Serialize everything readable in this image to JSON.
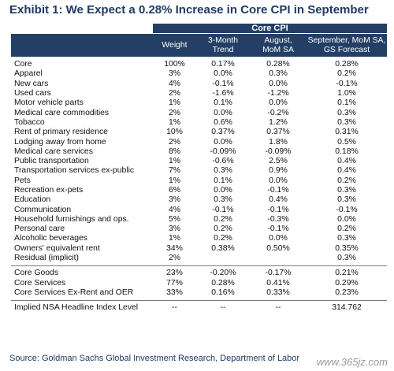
{
  "title": "Exhibit 1: We Expect a 0.28% Increase in Core CPI in September",
  "band_label": "Core CPI",
  "headers": [
    "Weight",
    "3-Month\nTrend",
    "August,\nMoM SA",
    "September, MoM SA,\nGS Forecast"
  ],
  "rows": [
    [
      "Core",
      "100%",
      "0.17%",
      "0.28%",
      "0.28%"
    ],
    [
      "Apparel",
      "3%",
      "0.0%",
      "0.3%",
      "0.2%"
    ],
    [
      "New cars",
      "4%",
      "-0.1%",
      "0.0%",
      "-0.1%"
    ],
    [
      "Used cars",
      "2%",
      "-1.6%",
      "-1.2%",
      "1.0%"
    ],
    [
      "Motor vehicle parts",
      "1%",
      "0.1%",
      "0.0%",
      "0.1%"
    ],
    [
      "Medical care commodities",
      "2%",
      "0.0%",
      "-0.2%",
      "0.3%"
    ],
    [
      "Tobacco",
      "1%",
      "0.6%",
      "1.2%",
      "0.3%"
    ],
    [
      "Rent of primary residence",
      "10%",
      "0.37%",
      "0.37%",
      "0.31%"
    ],
    [
      "Lodging away from home",
      "2%",
      "0.0%",
      "1.8%",
      "0.5%"
    ],
    [
      "Medical care services",
      "8%",
      "-0.09%",
      "-0.09%",
      "0.18%"
    ],
    [
      "Public transportation",
      "1%",
      "-0.6%",
      "2.5%",
      "0.4%"
    ],
    [
      "Transportation services ex-public",
      "7%",
      "0.3%",
      "0.9%",
      "0.4%"
    ],
    [
      "Pets",
      "1%",
      "0.1%",
      "0.0%",
      "0.2%"
    ],
    [
      "Recreation ex-pets",
      "6%",
      "0.0%",
      "-0.1%",
      "0.3%"
    ],
    [
      "Education",
      "3%",
      "0.3%",
      "0.4%",
      "0.3%"
    ],
    [
      "Communication",
      "4%",
      "-0.1%",
      "-0.1%",
      "-0.1%"
    ],
    [
      "Household furnishings and ops.",
      "5%",
      "0.2%",
      "-0.3%",
      "0.0%"
    ],
    [
      "Personal care",
      "3%",
      "0.2%",
      "-0.1%",
      "0.2%"
    ],
    [
      "Alcoholic beverages",
      "1%",
      "0.2%",
      "0.0%",
      "0.3%"
    ],
    [
      "Owners' equivalent rent",
      "34%",
      "0.38%",
      "0.50%",
      "0.35%"
    ],
    [
      "Residual (implicit)",
      "2%",
      "",
      "",
      "0.3%"
    ]
  ],
  "summary_rows": [
    [
      "Core Goods",
      "23%",
      "-0.20%",
      "-0.17%",
      "0.21%"
    ],
    [
      "Core Services",
      "77%",
      "0.28%",
      "0.41%",
      "0.29%"
    ],
    [
      "Core Services Ex-Rent and OER",
      "33%",
      "0.16%",
      "0.33%",
      "0.23%"
    ]
  ],
  "headline_row": [
    "Implied NSA Headline Index Level",
    "--",
    "--",
    "--",
    "314.762"
  ],
  "source": "Source: Goldman Sachs Global Investment Research, Department of Labor",
  "watermark": "www.365jz.com",
  "colors": {
    "header_bg": "#233f66",
    "title": "#1f3a63"
  }
}
